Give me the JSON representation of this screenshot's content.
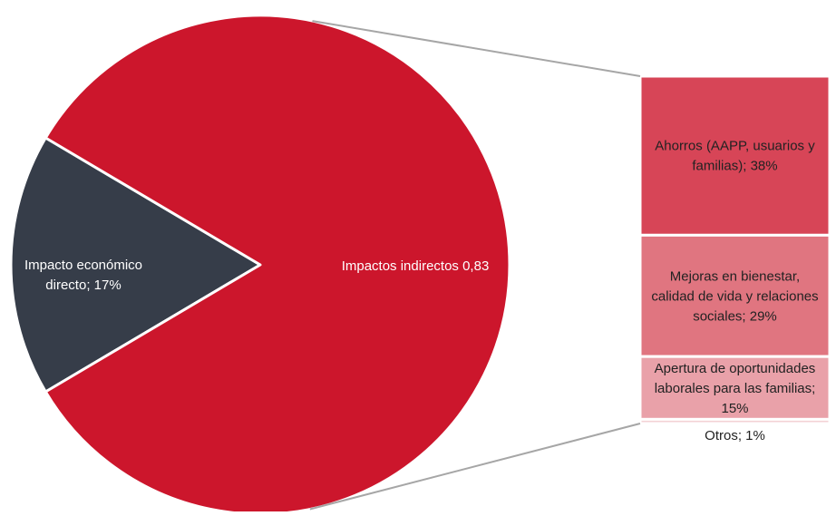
{
  "chart_data": {
    "type": "pie",
    "title": "",
    "pie": {
      "slices": [
        {
          "label": "Impacto económico directo; 17%",
          "value": 17,
          "color": "#363d49"
        },
        {
          "label": "Impactos indirectos 0,83",
          "value": 83,
          "color": "#cc162c"
        }
      ]
    },
    "breakdown": {
      "parent": "Impactos indirectos 0,83",
      "segments": [
        {
          "label": "Ahorros (AAPP, usuarios y familias); 38%",
          "value": 38,
          "color": "#d74557"
        },
        {
          "label": "Mejoras en bienestar, calidad de vida y relaciones sociales; 29%",
          "value": 29,
          "color": "#e07580"
        },
        {
          "label": "Apertura de oportunidades laborales para las familias; 15%",
          "value": 15,
          "color": "#e9a1a9"
        },
        {
          "label": "Otros; 1%",
          "value": 1,
          "color": "#f3d2d5"
        }
      ]
    }
  }
}
